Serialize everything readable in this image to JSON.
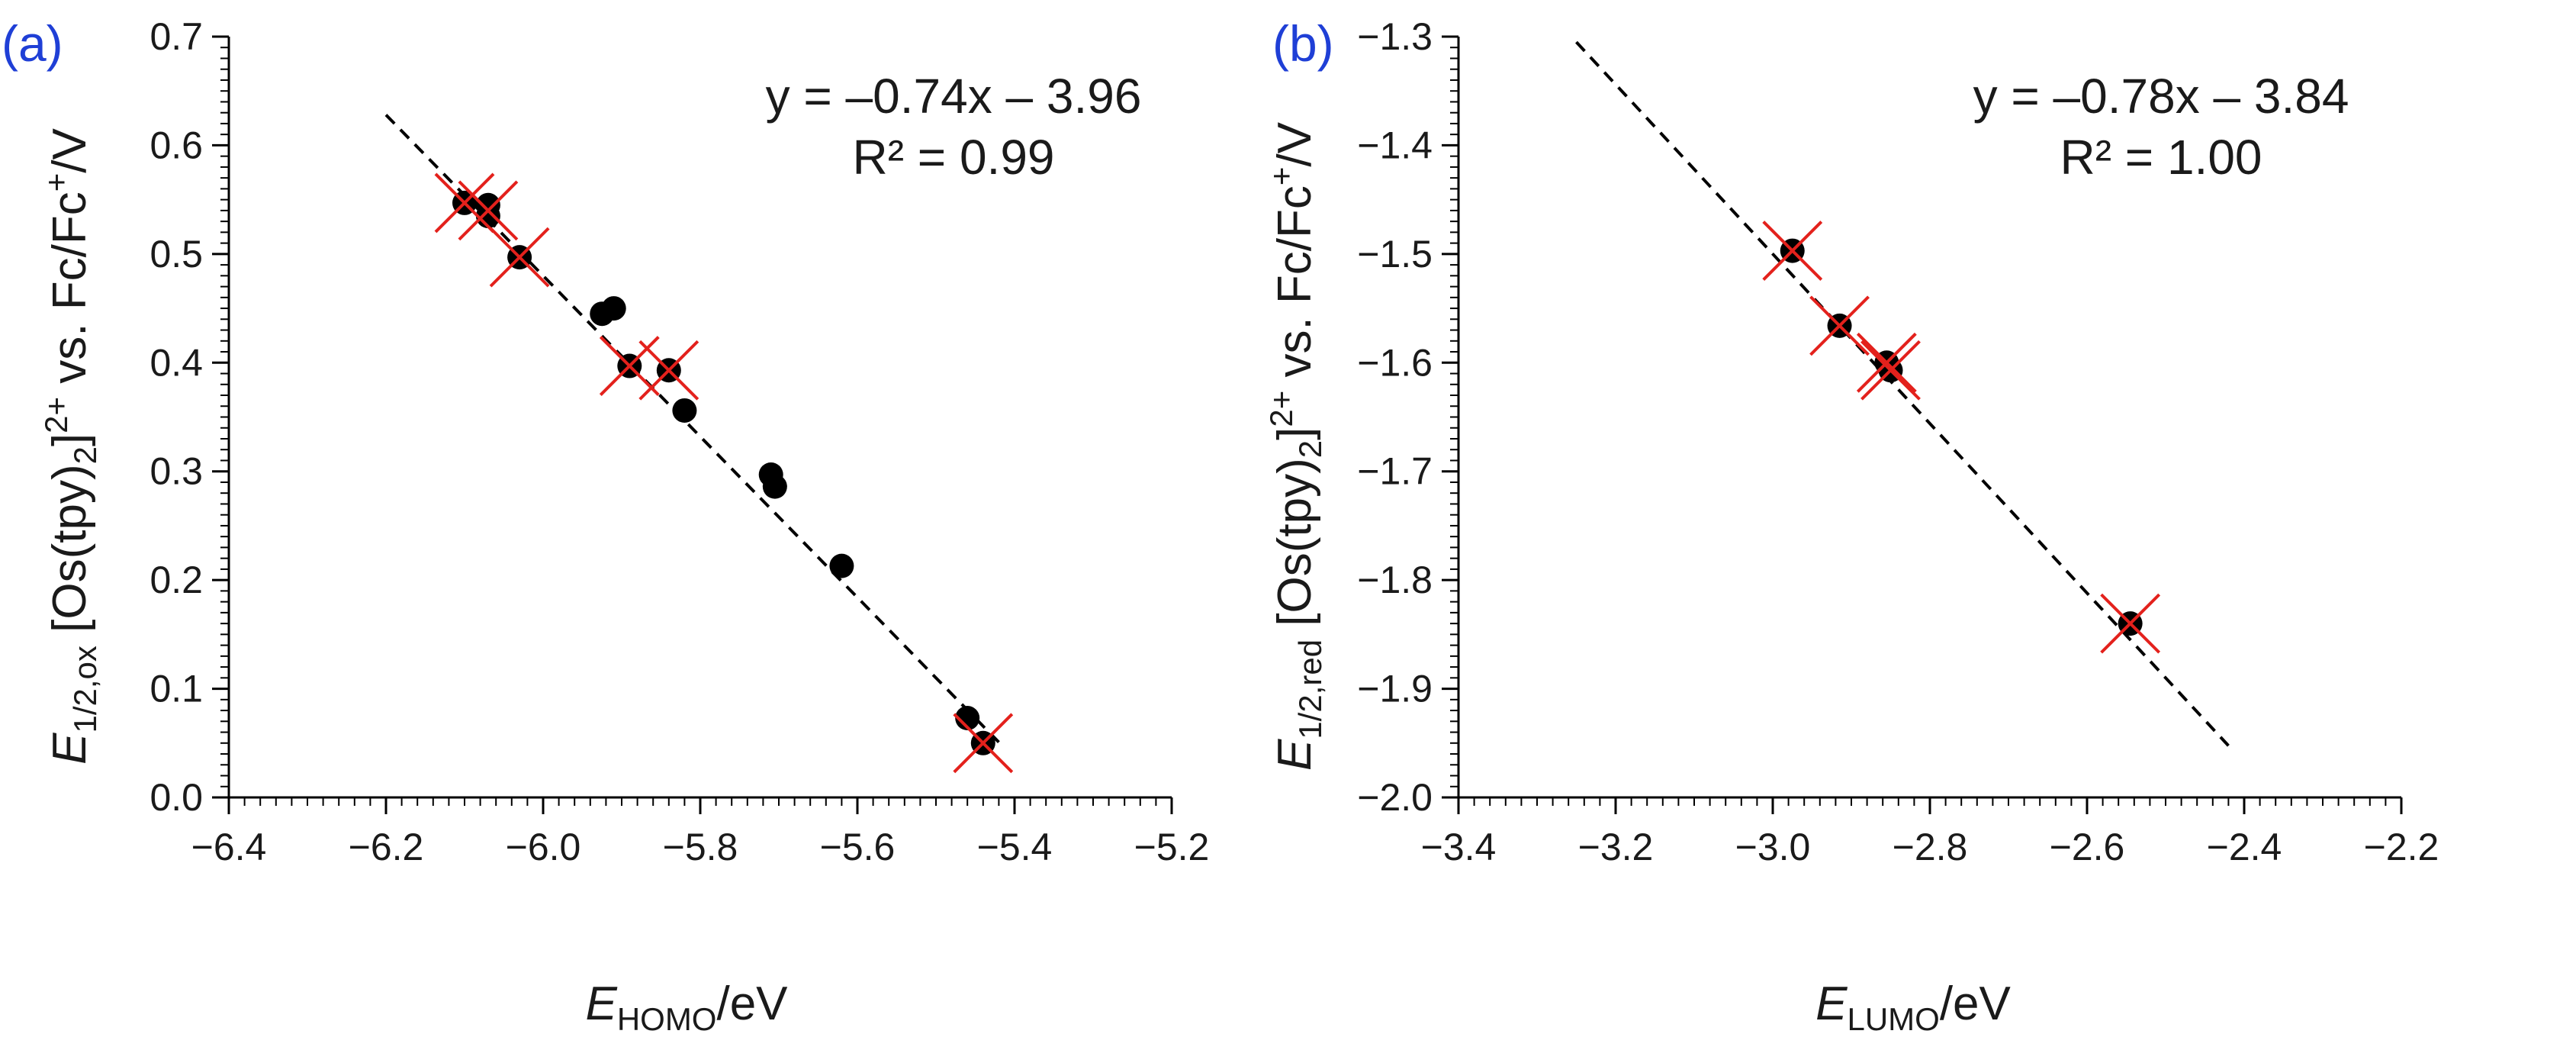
{
  "chart_data": [
    {
      "type": "scatter",
      "panel_label": "(a)",
      "title": "",
      "xlabel": {
        "main": "E",
        "sub": "HOMO",
        "unit": "/eV"
      },
      "ylabel": {
        "main": "E",
        "sub": "1/2,ox",
        "mid": " [Os(tpy)",
        "mid_sub": "2",
        "mid_close": "]",
        "sup": "2+",
        "vs": " vs. Fc/Fc",
        "vs_sup": "+",
        "unit": "/V"
      },
      "xlim": [
        -6.4,
        -5.2
      ],
      "ylim": [
        0.0,
        0.7
      ],
      "x_ticks": [
        -6.4,
        -6.2,
        -6.0,
        -5.8,
        -5.6,
        -5.4,
        -5.2
      ],
      "x_tick_labels": [
        "−6.4",
        "−6.2",
        "−6.0",
        "−5.8",
        "−5.6",
        "−5.4",
        "−5.2"
      ],
      "y_ticks": [
        0.0,
        0.1,
        0.2,
        0.3,
        0.4,
        0.5,
        0.6,
        0.7
      ],
      "y_tick_labels": [
        "0.0",
        "0.1",
        "0.2",
        "0.3",
        "0.4",
        "0.5",
        "0.6",
        "0.7"
      ],
      "equation": "y = –0.74x – 3.96",
      "r_squared": "R² = 0.99",
      "fit": {
        "slope": -0.74,
        "intercept": -3.96,
        "x_range": [
          -6.2,
          -5.42
        ]
      },
      "points": [
        {
          "x": -6.1,
          "y": 0.547
        },
        {
          "x": -6.07,
          "y": 0.545
        },
        {
          "x": -6.07,
          "y": 0.535
        },
        {
          "x": -6.03,
          "y": 0.497
        },
        {
          "x": -5.925,
          "y": 0.445
        },
        {
          "x": -5.91,
          "y": 0.45
        },
        {
          "x": -5.89,
          "y": 0.397
        },
        {
          "x": -5.84,
          "y": 0.393
        },
        {
          "x": -5.82,
          "y": 0.356
        },
        {
          "x": -5.71,
          "y": 0.297
        },
        {
          "x": -5.705,
          "y": 0.286
        },
        {
          "x": -5.62,
          "y": 0.213
        },
        {
          "x": -5.46,
          "y": 0.073
        },
        {
          "x": -5.44,
          "y": 0.05
        }
      ],
      "crossed_points": [
        {
          "x": -6.1,
          "y": 0.547
        },
        {
          "x": -6.07,
          "y": 0.54
        },
        {
          "x": -6.03,
          "y": 0.497
        },
        {
          "x": -5.89,
          "y": 0.397
        },
        {
          "x": -5.84,
          "y": 0.393
        },
        {
          "x": -5.44,
          "y": 0.05
        }
      ],
      "colors": {
        "points": "#000000",
        "crosses": "#e3211c",
        "fit": "#000000"
      }
    },
    {
      "type": "scatter",
      "panel_label": "(b)",
      "title": "",
      "xlabel": {
        "main": "E",
        "sub": "LUMO",
        "unit": "/eV"
      },
      "ylabel": {
        "main": "E",
        "sub": "1/2,red",
        "mid": " [Os(tpy)",
        "mid_sub": "2",
        "mid_close": "]",
        "sup": "2+",
        "vs": " vs. Fc/Fc",
        "vs_sup": "+",
        "unit": "/V"
      },
      "xlim": [
        -3.4,
        -2.2
      ],
      "ylim": [
        -2.0,
        -1.3
      ],
      "x_ticks": [
        -3.4,
        -3.2,
        -3.0,
        -2.8,
        -2.6,
        -2.4,
        -2.2
      ],
      "x_tick_labels": [
        "−3.4",
        "−3.2",
        "−3.0",
        "−2.8",
        "−2.6",
        "−2.4",
        "−2.2"
      ],
      "y_ticks": [
        -1.3,
        -1.4,
        -1.5,
        -1.6,
        -1.7,
        -1.8,
        -1.9,
        -2.0
      ],
      "y_tick_labels": [
        "−1.3",
        "−1.4",
        "−1.5",
        "−1.6",
        "−1.7",
        "−1.8",
        "−1.9",
        "−2.0"
      ],
      "equation": "y = –0.78x – 3.84",
      "r_squared": "R² = 1.00",
      "fit": {
        "slope": -0.78,
        "intercept": -3.84,
        "x_range": [
          -3.25,
          -2.42
        ]
      },
      "points": [
        {
          "x": -2.975,
          "y": -1.497
        },
        {
          "x": -2.915,
          "y": -1.566
        },
        {
          "x": -2.855,
          "y": -1.6
        },
        {
          "x": -2.85,
          "y": -1.607
        },
        {
          "x": -2.545,
          "y": -1.84
        }
      ],
      "crossed_points": [
        {
          "x": -2.975,
          "y": -1.497
        },
        {
          "x": -2.915,
          "y": -1.566
        },
        {
          "x": -2.855,
          "y": -1.6
        },
        {
          "x": -2.85,
          "y": -1.607
        },
        {
          "x": -2.545,
          "y": -1.84
        }
      ],
      "colors": {
        "points": "#000000",
        "crosses": "#e3211c",
        "fit": "#000000"
      }
    }
  ]
}
